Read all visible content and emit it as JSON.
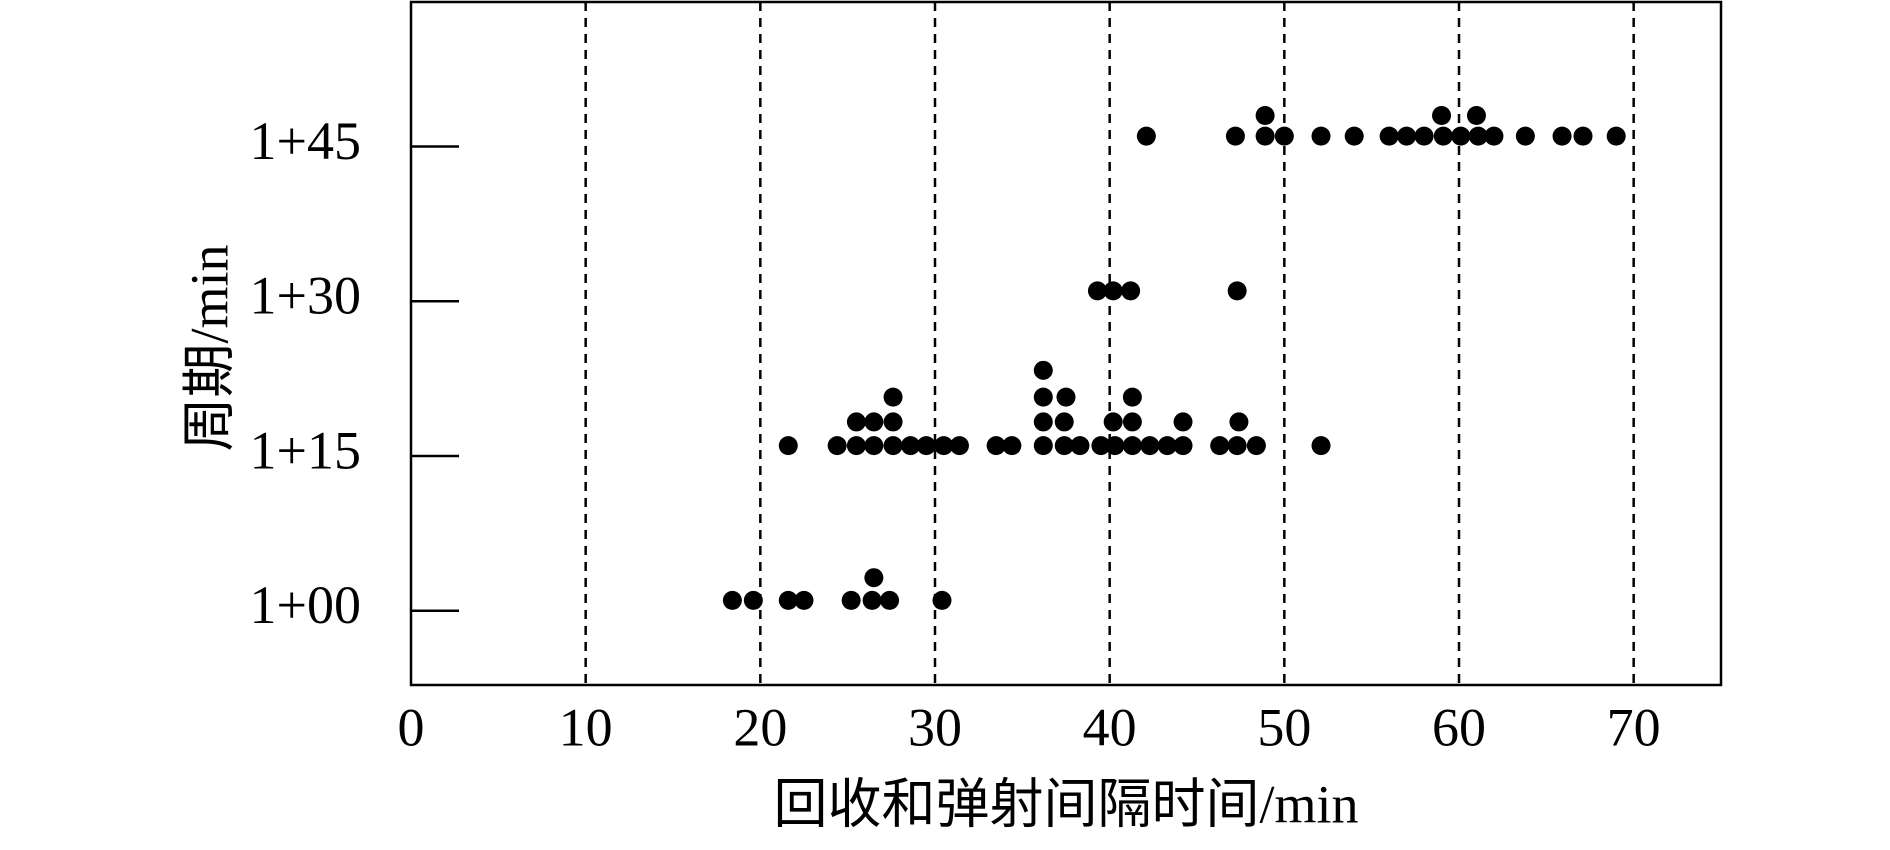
{
  "chart_data": {
    "type": "scatter",
    "xlabel": "回收和弹射间隔时间/min",
    "ylabel": "周期/min",
    "color": "#000000",
    "grid": true,
    "xlim": [
      0,
      75
    ],
    "xticks": [
      0,
      10,
      20,
      30,
      40,
      50,
      60,
      70
    ],
    "ylim": [
      52.8,
      119
    ],
    "yticks": [
      {
        "value": 60,
        "label": "1+00"
      },
      {
        "value": 75,
        "label": "1+15"
      },
      {
        "value": 90,
        "label": "1+30"
      },
      {
        "value": 105,
        "label": "1+45"
      }
    ],
    "x": [
      18.4,
      19.6,
      21.6,
      22.5,
      25.2,
      26.4,
      27.4,
      30.4,
      26.5,
      21.6,
      24.4,
      25.5,
      26.5,
      27.6,
      28.6,
      29.5,
      30.5,
      31.4,
      33.5,
      34.4,
      36.2,
      37.4,
      38.3,
      39.5,
      40.3,
      41.3,
      42.3,
      43.3,
      44.2,
      46.3,
      47.3,
      48.4,
      52.1,
      25.5,
      26.5,
      27.6,
      36.2,
      37.4,
      40.2,
      41.3,
      44.2,
      47.4,
      27.6,
      36.2,
      37.5,
      41.3,
      36.2,
      39.3,
      40.2,
      41.2,
      47.3,
      42.1,
      47.2,
      48.9,
      50.0,
      52.1,
      54.0,
      56.0,
      57.0,
      58.0,
      59.1,
      60.1,
      61.1,
      62.0,
      63.8,
      65.9,
      67.1,
      69.0,
      48.9,
      59.0,
      61.0
    ],
    "y": [
      61,
      61,
      61,
      61,
      61,
      61,
      61,
      61,
      63.2,
      76,
      76,
      76,
      76,
      76,
      76,
      76,
      76,
      76,
      76,
      76,
      76,
      76,
      76,
      76,
      76,
      76,
      76,
      76,
      76,
      76,
      76,
      76,
      76,
      78.3,
      78.3,
      78.3,
      78.3,
      78.3,
      78.3,
      78.3,
      78.3,
      78.3,
      80.7,
      80.7,
      80.7,
      80.7,
      83.3,
      91,
      91,
      91,
      91,
      106,
      106,
      106,
      106,
      106,
      106,
      106,
      106,
      106,
      106,
      106,
      106,
      106,
      106,
      106,
      106,
      106,
      108,
      108,
      108
    ]
  }
}
